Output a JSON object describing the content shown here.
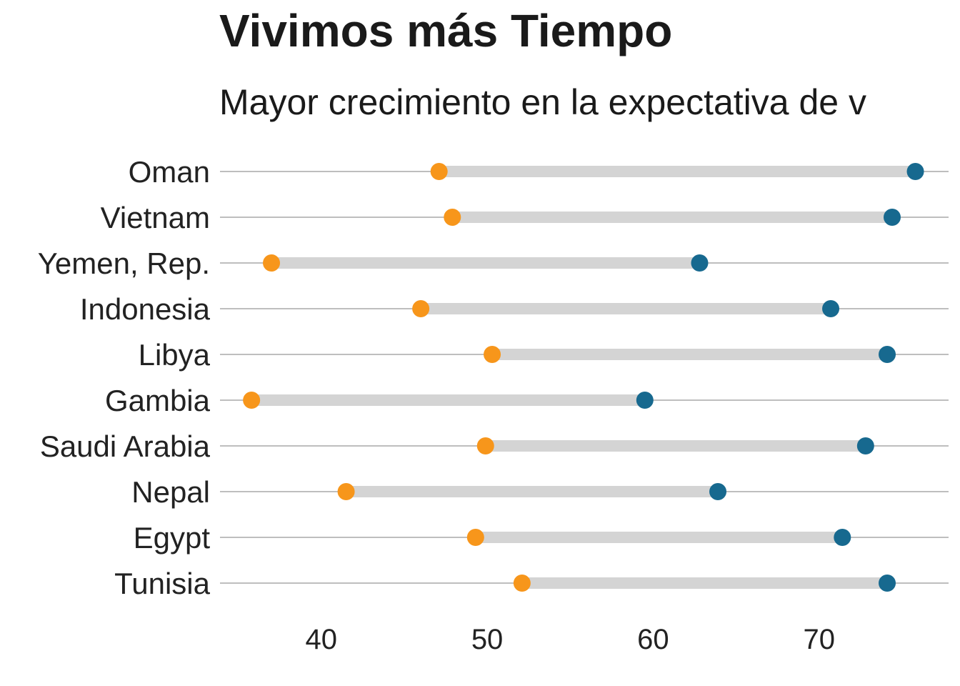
{
  "chart_data": {
    "type": "dumbbell",
    "title": "Vivimos más Tiempo",
    "subtitle": "Mayor crecimiento en la expectativa de v",
    "xlabel": "",
    "ylabel": "",
    "xlim": [
      33.9,
      77.8
    ],
    "xticks": [
      40,
      50,
      60,
      70
    ],
    "grid": "horizontal",
    "categories": [
      "Oman",
      "Vietnam",
      "Yemen, Rep.",
      "Indonesia",
      "Libya",
      "Gambia",
      "Saudi Arabia",
      "Nepal",
      "Egypt",
      "Tunisia"
    ],
    "series": [
      {
        "key": "start",
        "color": "#F7961B",
        "values": [
          47.1,
          47.9,
          37.0,
          46.0,
          50.3,
          35.8,
          49.9,
          41.5,
          49.3,
          52.1
        ]
      },
      {
        "key": "end",
        "color": "#17698F",
        "values": [
          75.8,
          74.4,
          62.8,
          70.7,
          74.1,
          59.5,
          72.8,
          63.9,
          71.4,
          74.1
        ]
      }
    ],
    "colors": {
      "segment": "#D4D4D4",
      "gridline": "#BEBEBE"
    }
  }
}
